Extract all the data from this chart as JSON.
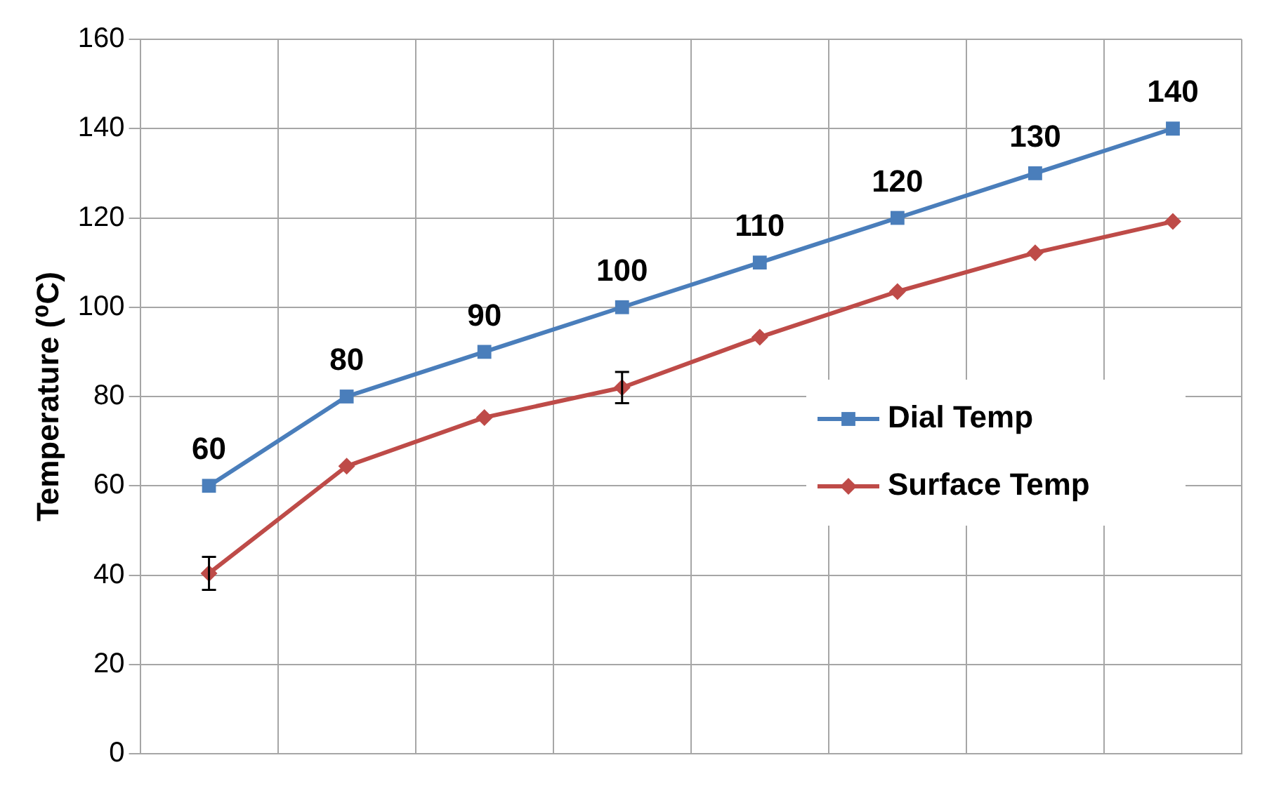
{
  "chart_data": {
    "type": "line",
    "ylabel": "Temperature (⁰C)",
    "categories": [
      null,
      null,
      null,
      null,
      null,
      null,
      null,
      null
    ],
    "ylim": [
      0,
      160
    ],
    "yticks": [
      0,
      20,
      40,
      60,
      80,
      100,
      120,
      140,
      160
    ],
    "grid": true,
    "legend": "right",
    "series": [
      {
        "name": "Dial Temp",
        "color": "#4a7ebb",
        "marker": "square",
        "values": [
          60,
          80,
          90,
          100,
          110,
          120,
          130,
          140
        ],
        "value_labels": [
          "60",
          "80",
          "90",
          "100",
          "110",
          "120",
          "130",
          "140"
        ]
      },
      {
        "name": "Surface Temp",
        "color": "#be4b48",
        "marker": "diamond",
        "values": [
          40.4,
          64.4,
          75.3,
          82,
          93.3,
          103.5,
          112.2,
          119.2
        ],
        "errors": [
          3.7,
          null,
          null,
          3.5,
          null,
          null,
          null,
          null
        ]
      }
    ]
  }
}
